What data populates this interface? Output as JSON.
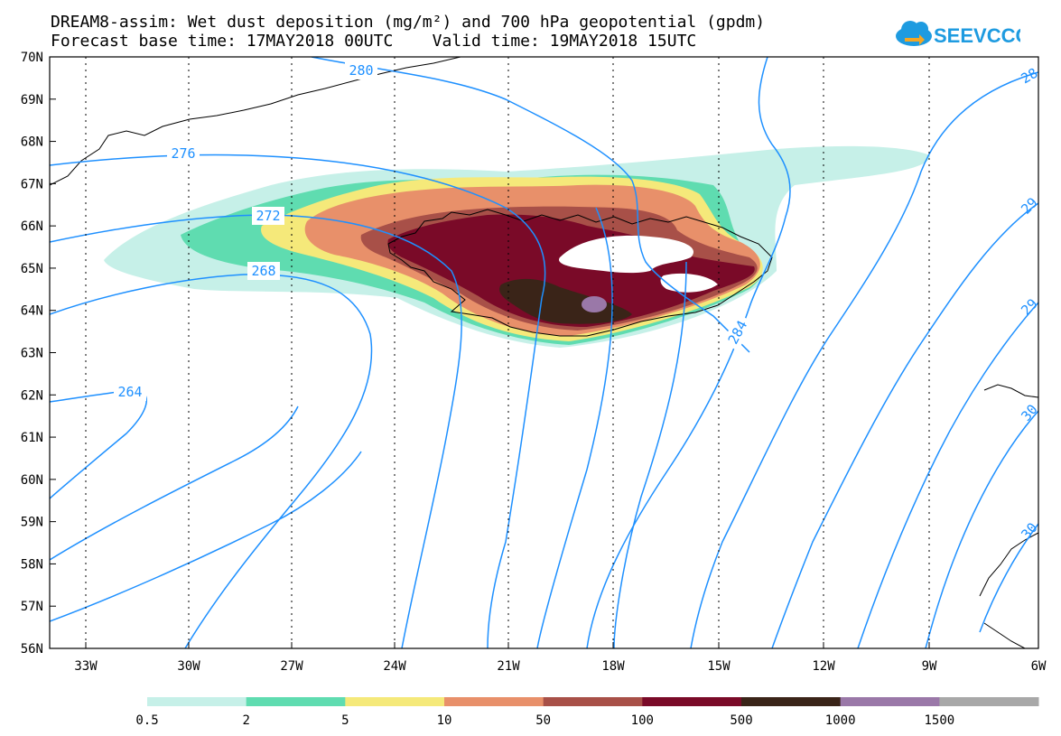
{
  "title_line1": "DREAM8-assim: Wet dust deposition (mg/m²) and 700 hPa geopotential (gpdm)",
  "title_line2": "Forecast base time: 17MAY2018 00UTC    Valid time: 19MAY2018 15UTC",
  "logo_text": "SEEVCCC",
  "logo_icon": "cloud-arrow-icon",
  "lat_labels": [
    "70N",
    "69N",
    "68N",
    "67N",
    "66N",
    "65N",
    "64N",
    "63N",
    "62N",
    "61N",
    "60N",
    "59N",
    "58N",
    "57N",
    "56N"
  ],
  "lon_labels": [
    "33W",
    "30W",
    "27W",
    "24W",
    "21W",
    "18W",
    "15W",
    "12W",
    "9W",
    "6W"
  ],
  "contour_labels": [
    "280",
    "276",
    "272",
    "268",
    "264",
    "284",
    "28",
    "29",
    "29",
    "30",
    "30"
  ],
  "colorbar": {
    "labels": [
      "0.5",
      "2",
      "5",
      "10",
      "50",
      "100",
      "500",
      "1000",
      "1500"
    ],
    "colors": [
      "#c6f0e8",
      "#5fdcb0",
      "#f5e97a",
      "#e8906a",
      "#a85048",
      "#7a0a28",
      "#3a2418",
      "#9a78a8",
      "#a8a8a8"
    ]
  },
  "colors": {
    "contour": "#1e90ff",
    "grid": "#000000"
  }
}
